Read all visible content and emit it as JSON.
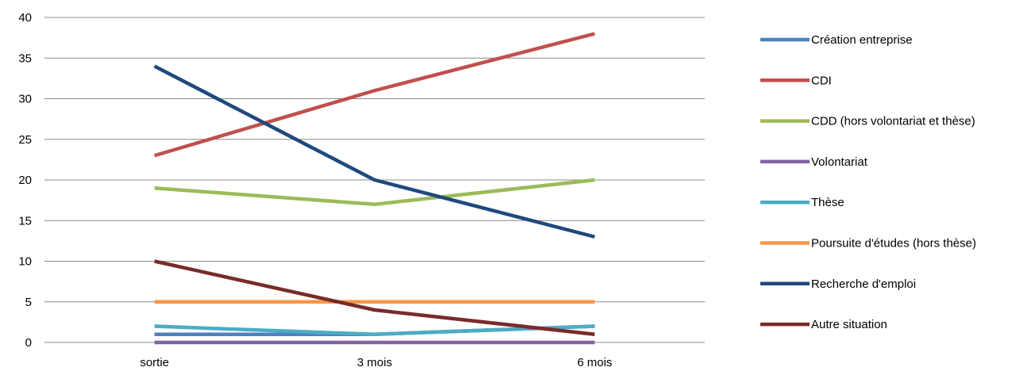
{
  "chart_data": {
    "type": "line",
    "categories": [
      "sortie",
      "3 mois",
      "6 mois"
    ],
    "ylim": [
      0,
      40
    ],
    "yticks": [
      0,
      5,
      10,
      15,
      20,
      25,
      30,
      35,
      40
    ],
    "grid": true,
    "legend_position": "right",
    "title": "",
    "xlabel": "",
    "ylabel": "",
    "series": [
      {
        "name": "Création entreprise",
        "values": [
          1,
          1,
          2
        ],
        "color": "#4F81BD"
      },
      {
        "name": "CDI",
        "values": [
          23,
          31,
          38
        ],
        "color": "#C0504D"
      },
      {
        "name": "CDD (hors volontariat et thèse)",
        "values": [
          19,
          17,
          20
        ],
        "color": "#9BBB59"
      },
      {
        "name": "Volontariat",
        "values": [
          0,
          0,
          0
        ],
        "color": "#8064A2"
      },
      {
        "name": "Thèse",
        "values": [
          2,
          1,
          2
        ],
        "color": "#4BACC6"
      },
      {
        "name": "Poursuite d'études (hors thèse)",
        "values": [
          5,
          5,
          5
        ],
        "color": "#F79646"
      },
      {
        "name": "Recherche d'emploi",
        "values": [
          34,
          20,
          13
        ],
        "color": "#1F497D"
      },
      {
        "name": "Autre situation",
        "values": [
          10,
          4,
          1
        ],
        "color": "#772C2A"
      }
    ]
  }
}
